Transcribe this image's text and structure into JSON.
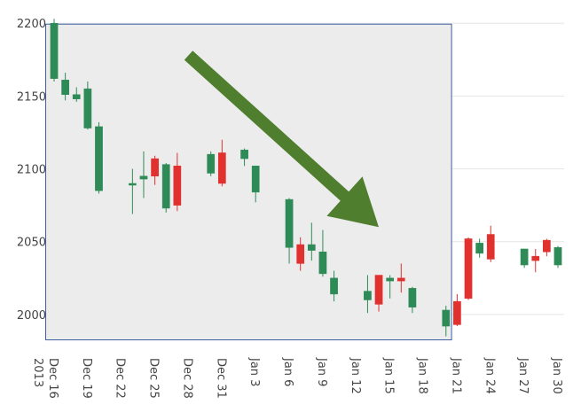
{
  "chart_data": {
    "type": "candlestick",
    "title": "",
    "xlabel": "",
    "ylabel": "",
    "ylim": [
      1975,
      2205
    ],
    "grid": "horizontal",
    "colors": {
      "increasing": "#2e8b57",
      "decreasing": "#e0312f",
      "highlight_fill": "#ececec",
      "highlight_border": "#3a5fa0",
      "arrow": "#4f7f2e"
    },
    "y_ticks": [
      2000,
      2050,
      2100,
      2150,
      2200
    ],
    "x_ticks": [
      {
        "date": "2013-12-16",
        "label": "Dec 16",
        "sub": "2013"
      },
      {
        "date": "2013-12-19",
        "label": "Dec 19"
      },
      {
        "date": "2013-12-22",
        "label": "Dec 22"
      },
      {
        "date": "2013-12-25",
        "label": "Dec 25"
      },
      {
        "date": "2013-12-28",
        "label": "Dec 28"
      },
      {
        "date": "2013-12-31",
        "label": "Dec 31"
      },
      {
        "date": "2014-01-03",
        "label": "Jan 3"
      },
      {
        "date": "2014-01-06",
        "label": "Jan 6"
      },
      {
        "date": "2014-01-09",
        "label": "Jan 9"
      },
      {
        "date": "2014-01-12",
        "label": "Jan 12"
      },
      {
        "date": "2014-01-15",
        "label": "Jan 15"
      },
      {
        "date": "2014-01-18",
        "label": "Jan 18"
      },
      {
        "date": "2014-01-21",
        "label": "Jan 21"
      },
      {
        "date": "2014-01-24",
        "label": "Jan 24"
      },
      {
        "date": "2014-01-27",
        "label": "Jan 27"
      },
      {
        "date": "2014-01-30",
        "label": "Jan 30"
      }
    ],
    "highlight_range": {
      "x": [
        "2013-12-16",
        "2014-01-20"
      ],
      "y": [
        1985,
        2200
      ]
    },
    "trend_arrow": {
      "from": {
        "x": "2013-12-28",
        "y": 2178
      },
      "to": {
        "x": "2014-01-14",
        "y": 2060
      }
    },
    "candles": [
      {
        "x": "2013-12-16",
        "open": 2162,
        "high": 2203,
        "low": 2160,
        "close": 2200
      },
      {
        "x": "2013-12-17",
        "open": 2151,
        "high": 2166,
        "low": 2147,
        "close": 2161
      },
      {
        "x": "2013-12-18",
        "open": 2148,
        "high": 2156,
        "low": 2146,
        "close": 2151
      },
      {
        "x": "2013-12-19",
        "open": 2128,
        "high": 2160,
        "low": 2127,
        "close": 2155
      },
      {
        "x": "2013-12-20",
        "open": 2085,
        "high": 2132,
        "low": 2083,
        "close": 2129
      },
      {
        "x": "2013-12-23",
        "open": 2090,
        "high": 2100,
        "low": 2069,
        "close": 2090
      },
      {
        "x": "2013-12-24",
        "open": 2093,
        "high": 2112,
        "low": 2080,
        "close": 2095
      },
      {
        "x": "2013-12-25",
        "open": 2107,
        "high": 2109,
        "low": 2089,
        "close": 2095
      },
      {
        "x": "2013-12-26",
        "open": 2073,
        "high": 2104,
        "low": 2070,
        "close": 2103
      },
      {
        "x": "2013-12-27",
        "open": 2102,
        "high": 2111,
        "low": 2071,
        "close": 2075
      },
      {
        "x": "2013-12-30",
        "open": 2097,
        "high": 2112,
        "low": 2095,
        "close": 2110
      },
      {
        "x": "2013-12-31",
        "open": 2111,
        "high": 2120,
        "low": 2088,
        "close": 2090
      },
      {
        "x": "2014-01-02",
        "open": 2107,
        "high": 2114,
        "low": 2102,
        "close": 2113
      },
      {
        "x": "2014-01-03",
        "open": 2084,
        "high": 2102,
        "low": 2077,
        "close": 2102
      },
      {
        "x": "2014-01-06",
        "open": 2046,
        "high": 2080,
        "low": 2035,
        "close": 2079
      },
      {
        "x": "2014-01-07",
        "open": 2048,
        "high": 2053,
        "low": 2030,
        "close": 2035
      },
      {
        "x": "2014-01-08",
        "open": 2044,
        "high": 2063,
        "low": 2037,
        "close": 2048
      },
      {
        "x": "2014-01-09",
        "open": 2028,
        "high": 2058,
        "low": 2026,
        "close": 2043
      },
      {
        "x": "2014-01-10",
        "open": 2014,
        "high": 2030,
        "low": 2009,
        "close": 2025
      },
      {
        "x": "2014-01-13",
        "open": 2010,
        "high": 2027,
        "low": 2001,
        "close": 2016
      },
      {
        "x": "2014-01-14",
        "open": 2027,
        "high": 2027,
        "low": 2002,
        "close": 2007
      },
      {
        "x": "2014-01-15",
        "open": 2023,
        "high": 2027,
        "low": 2011,
        "close": 2025
      },
      {
        "x": "2014-01-16",
        "open": 2025,
        "high": 2035,
        "low": 2015,
        "close": 2023
      },
      {
        "x": "2014-01-17",
        "open": 2005,
        "high": 2019,
        "low": 2001,
        "close": 2018
      },
      {
        "x": "2014-01-20",
        "open": 1992,
        "high": 2006,
        "low": 1985,
        "close": 2003
      },
      {
        "x": "2014-01-21",
        "open": 2009,
        "high": 2014,
        "low": 1992,
        "close": 1993
      },
      {
        "x": "2014-01-22",
        "open": 2052,
        "high": 2053,
        "low": 2010,
        "close": 2011
      },
      {
        "x": "2014-01-23",
        "open": 2042,
        "high": 2052,
        "low": 2039,
        "close": 2049
      },
      {
        "x": "2014-01-24",
        "open": 2055,
        "high": 2061,
        "low": 2036,
        "close": 2038
      },
      {
        "x": "2014-01-27",
        "open": 2034,
        "high": 2045,
        "low": 2032,
        "close": 2045
      },
      {
        "x": "2014-01-28",
        "open": 2040,
        "high": 2045,
        "low": 2029,
        "close": 2037
      },
      {
        "x": "2014-01-29",
        "open": 2051,
        "high": 2052,
        "low": 2040,
        "close": 2043
      },
      {
        "x": "2014-01-30",
        "open": 2034,
        "high": 2047,
        "low": 2032,
        "close": 2046
      }
    ]
  }
}
